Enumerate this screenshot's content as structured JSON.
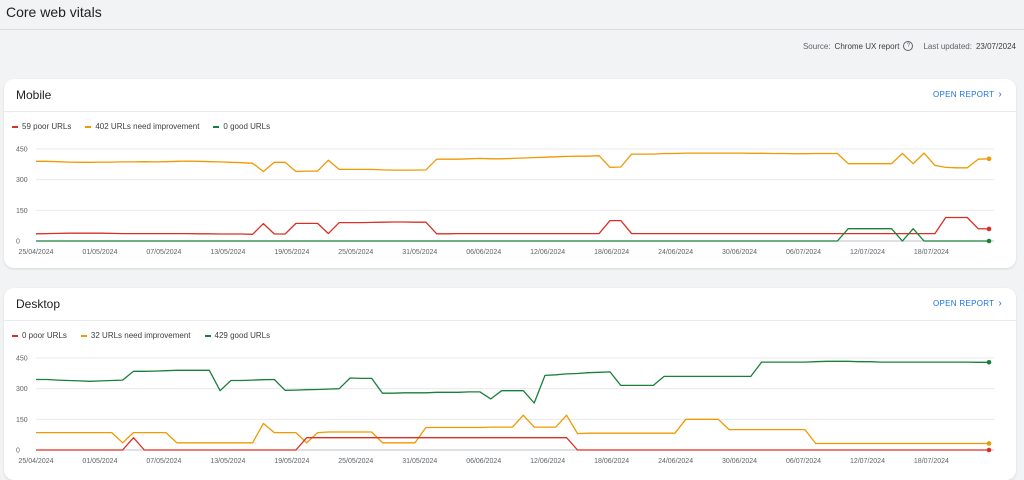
{
  "page": {
    "title": "Core web vitals",
    "source_label": "Source:",
    "source_value": "Chrome UX report",
    "updated_label": "Last updated:",
    "updated_value": "23/07/2024"
  },
  "colors": {
    "poor": "#d93025",
    "improvement": "#f29900",
    "good": "#188038",
    "link": "#1a73e8"
  },
  "mobile": {
    "title": "Mobile",
    "open_report": "OPEN REPORT",
    "legend": {
      "poor": "59 poor URLs",
      "improvement": "402 URLs need improvement",
      "good": "0 good URLs"
    }
  },
  "desktop": {
    "title": "Desktop",
    "open_report": "OPEN REPORT",
    "legend": {
      "poor": "0 poor URLs",
      "improvement": "32 URLs need improvement",
      "good": "429 good URLs"
    }
  },
  "chart_data": [
    {
      "type": "line",
      "name": "Mobile",
      "x_ticks": [
        "25/04/2024",
        "01/05/2024",
        "07/05/2024",
        "13/05/2024",
        "19/05/2024",
        "25/05/2024",
        "31/05/2024",
        "06/06/2024",
        "12/06/2024",
        "18/06/2024",
        "24/06/2024",
        "30/06/2024",
        "06/07/2024",
        "12/07/2024",
        "18/07/2024"
      ],
      "ylim": [
        0,
        450
      ],
      "y_ticks": [
        0,
        150,
        300,
        450
      ],
      "grid": true,
      "series": [
        {
          "key": "improvement",
          "name": "402 URLs need improvement",
          "values": [
            390,
            390,
            388,
            386,
            385,
            385,
            386,
            386,
            387,
            387,
            388,
            387,
            388,
            390,
            391,
            390,
            388,
            387,
            385,
            383,
            380,
            340,
            385,
            385,
            340,
            342,
            342,
            395,
            350,
            350,
            350,
            350,
            348,
            347,
            347,
            347,
            348,
            400,
            400,
            400,
            402,
            404,
            402,
            402,
            404,
            406,
            408,
            410,
            412,
            414,
            415,
            415,
            417,
            360,
            362,
            425,
            425,
            425,
            428,
            428,
            430,
            430,
            430,
            430,
            430,
            430,
            429,
            429,
            428,
            428,
            427,
            427,
            428,
            428,
            428,
            378,
            378,
            378,
            378,
            378,
            428,
            378,
            430,
            370,
            360,
            358,
            358,
            400,
            402
          ]
        },
        {
          "key": "poor",
          "name": "59 poor URLs",
          "values": [
            35,
            36,
            37,
            38,
            38,
            38,
            38,
            37,
            36,
            36,
            36,
            36,
            36,
            36,
            36,
            35,
            35,
            34,
            34,
            34,
            33,
            85,
            34,
            34,
            86,
            86,
            86,
            36,
            90,
            90,
            90,
            91,
            92,
            93,
            93,
            92,
            92,
            35,
            35,
            36,
            36,
            36,
            36,
            36,
            36,
            36,
            36,
            36,
            36,
            36,
            36,
            36,
            36,
            100,
            100,
            36,
            36,
            36,
            36,
            36,
            36,
            36,
            36,
            36,
            36,
            36,
            36,
            36,
            36,
            36,
            36,
            36,
            36,
            36,
            36,
            36,
            36,
            36,
            36,
            36,
            36,
            36,
            36,
            36,
            115,
            115,
            115,
            60,
            59
          ]
        },
        {
          "key": "good",
          "name": "0 good URLs",
          "values": [
            0,
            0,
            0,
            0,
            0,
            0,
            0,
            0,
            0,
            0,
            0,
            0,
            0,
            0,
            0,
            0,
            0,
            0,
            0,
            0,
            0,
            0,
            0,
            0,
            0,
            0,
            0,
            0,
            0,
            0,
            0,
            0,
            0,
            0,
            0,
            0,
            0,
            0,
            0,
            0,
            0,
            0,
            0,
            0,
            0,
            0,
            0,
            0,
            0,
            0,
            0,
            0,
            0,
            0,
            0,
            0,
            0,
            0,
            0,
            0,
            0,
            0,
            0,
            0,
            0,
            0,
            0,
            0,
            0,
            0,
            0,
            0,
            0,
            0,
            0,
            60,
            60,
            60,
            60,
            60,
            0,
            60,
            0,
            0,
            0,
            0,
            0,
            0,
            0
          ]
        }
      ]
    },
    {
      "type": "line",
      "name": "Desktop",
      "x_ticks": [
        "25/04/2024",
        "01/05/2024",
        "07/05/2024",
        "13/05/2024",
        "19/05/2024",
        "25/05/2024",
        "31/05/2024",
        "06/06/2024",
        "12/06/2024",
        "18/06/2024",
        "24/06/2024",
        "30/06/2024",
        "06/07/2024",
        "12/07/2024",
        "18/07/2024"
      ],
      "ylim": [
        0,
        450
      ],
      "y_ticks": [
        0,
        150,
        300,
        450
      ],
      "grid": true,
      "series": [
        {
          "key": "good",
          "name": "429 good URLs",
          "values": [
            345,
            345,
            342,
            340,
            338,
            336,
            338,
            340,
            342,
            385,
            385,
            386,
            388,
            390,
            390,
            390,
            390,
            290,
            340,
            340,
            342,
            344,
            345,
            292,
            293,
            295,
            296,
            298,
            300,
            352,
            350,
            350,
            278,
            278,
            280,
            280,
            280,
            282,
            282,
            282,
            284,
            284,
            250,
            290,
            290,
            290,
            230,
            365,
            368,
            372,
            374,
            378,
            380,
            382,
            316,
            316,
            316,
            316,
            360,
            360,
            360,
            360,
            360,
            360,
            360,
            360,
            360,
            430,
            430,
            430,
            430,
            430,
            432,
            434,
            434,
            434,
            432,
            432,
            430,
            430,
            430,
            430,
            430,
            430,
            430,
            430,
            430,
            429,
            429
          ]
        },
        {
          "key": "improvement",
          "name": "32 URLs need improvement",
          "values": [
            85,
            85,
            85,
            85,
            85,
            85,
            85,
            85,
            35,
            85,
            85,
            85,
            85,
            35,
            35,
            35,
            35,
            35,
            35,
            35,
            35,
            130,
            85,
            85,
            85,
            35,
            85,
            88,
            88,
            88,
            88,
            88,
            35,
            35,
            35,
            35,
            110,
            110,
            110,
            110,
            110,
            110,
            112,
            112,
            112,
            170,
            112,
            112,
            112,
            170,
            80,
            82,
            82,
            82,
            82,
            82,
            82,
            82,
            82,
            82,
            150,
            150,
            150,
            150,
            100,
            100,
            100,
            100,
            100,
            100,
            100,
            100,
            32,
            32,
            32,
            32,
            32,
            32,
            32,
            32,
            32,
            32,
            32,
            32,
            32,
            32,
            32,
            32,
            32
          ]
        },
        {
          "key": "poor",
          "name": "0 poor URLs",
          "values": [
            0,
            0,
            0,
            0,
            0,
            0,
            0,
            0,
            0,
            60,
            0,
            0,
            0,
            0,
            0,
            0,
            0,
            0,
            0,
            0,
            0,
            0,
            0,
            0,
            0,
            60,
            60,
            60,
            60,
            60,
            60,
            60,
            60,
            60,
            60,
            60,
            60,
            60,
            60,
            60,
            60,
            60,
            60,
            60,
            60,
            60,
            60,
            60,
            60,
            60,
            0,
            0,
            0,
            0,
            0,
            0,
            0,
            0,
            0,
            0,
            0,
            0,
            0,
            0,
            0,
            0,
            0,
            0,
            0,
            0,
            0,
            0,
            0,
            0,
            0,
            0,
            0,
            0,
            0,
            0,
            0,
            0,
            0,
            0,
            0,
            0,
            0,
            0,
            0
          ]
        }
      ]
    }
  ]
}
